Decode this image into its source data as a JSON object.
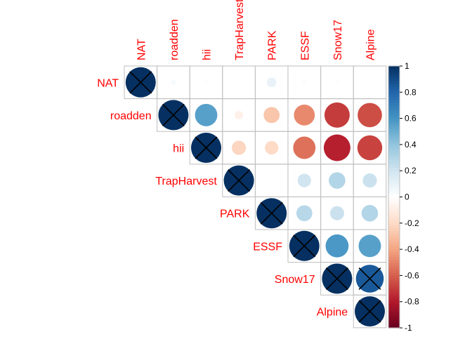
{
  "chart_data": {
    "type": "heatmap",
    "subtype": "correlation-circles-upper-triangle",
    "variables": [
      "NAT",
      "roadden",
      "hii",
      "TrapHarvest",
      "PARK",
      "ESSF",
      "Snow17",
      "Alpine"
    ],
    "matrix": [
      [
        1.0,
        0.03,
        0.02,
        0.0,
        0.1,
        0.02,
        0.02,
        0.01
      ],
      [
        0.03,
        1.0,
        0.55,
        -0.08,
        -0.28,
        -0.48,
        -0.7,
        -0.65
      ],
      [
        0.02,
        0.55,
        1.0,
        -0.22,
        -0.2,
        -0.55,
        -0.78,
        -0.68
      ],
      [
        0.0,
        -0.08,
        -0.22,
        1.0,
        0.0,
        0.2,
        0.3,
        0.22
      ],
      [
        0.1,
        -0.28,
        -0.2,
        0.0,
        1.0,
        0.28,
        0.22,
        0.3
      ],
      [
        0.02,
        -0.48,
        -0.55,
        0.2,
        0.28,
        1.0,
        0.58,
        0.55
      ],
      [
        0.02,
        -0.7,
        -0.78,
        0.3,
        0.22,
        0.58,
        1.0,
        0.85
      ],
      [
        0.01,
        -0.65,
        -0.68,
        0.22,
        0.3,
        0.55,
        0.85,
        1.0
      ]
    ],
    "crossed_cells": [
      [
        0,
        0
      ],
      [
        1,
        1
      ],
      [
        2,
        2
      ],
      [
        3,
        3
      ],
      [
        4,
        4
      ],
      [
        5,
        5
      ],
      [
        6,
        6
      ],
      [
        6,
        7
      ],
      [
        7,
        7
      ]
    ],
    "colorbar": {
      "range": [
        -1,
        1
      ],
      "ticks": [
        "1",
        "0.8",
        "0.6",
        "0.4",
        "0.2",
        "0",
        "-0.2",
        "-0.4",
        "-0.6",
        "-0.8",
        "-1"
      ],
      "colors": [
        "#67001f",
        "#b2182b",
        "#d6604d",
        "#f4a582",
        "#fddbc7",
        "#ffffff",
        "#d1e5f0",
        "#92c5de",
        "#4393c3",
        "#2166ac",
        "#053061"
      ],
      "placement": "right"
    },
    "label_color": "#ff0000",
    "grid": true
  }
}
